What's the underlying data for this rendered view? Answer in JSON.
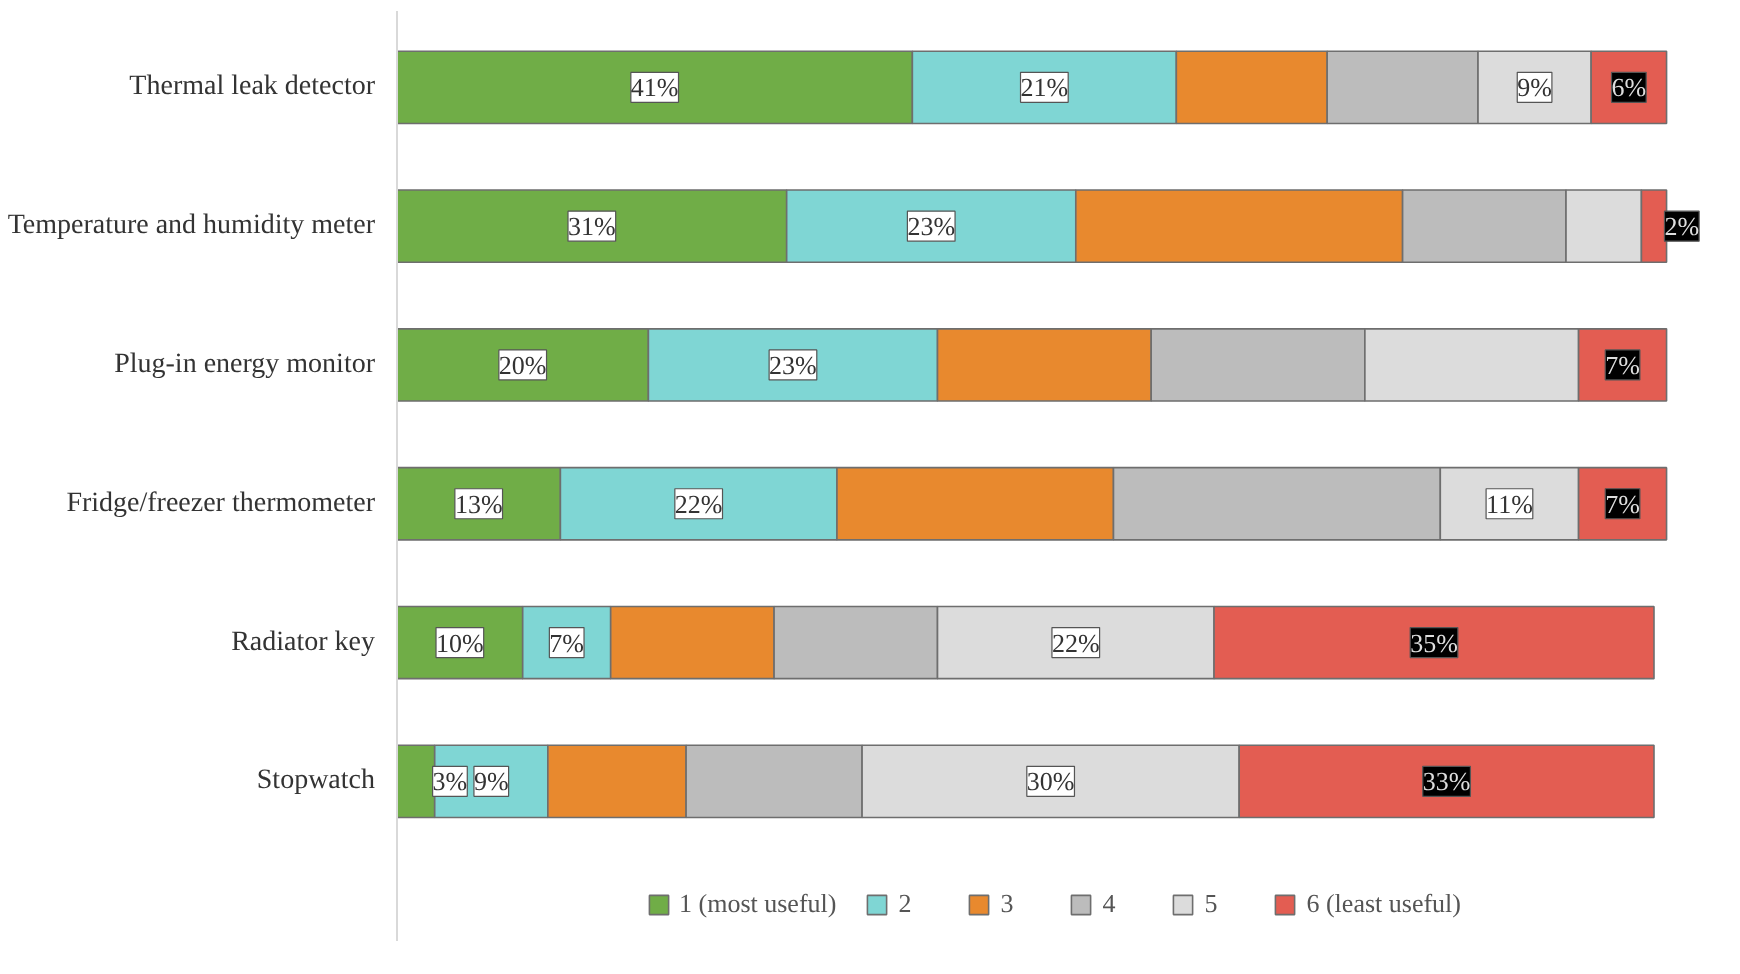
{
  "chart_data": {
    "type": "bar",
    "orientation": "horizontal",
    "stacked": true,
    "legend": "bottom",
    "grid": false,
    "tick_labels": "y",
    "categories": [
      "Thermal leak detector",
      "Temperature and humidity meter",
      "Plug-in energy monitor",
      "Fridge/freezer thermometer",
      "Radiator key",
      "Stopwatch"
    ],
    "series": [
      {
        "name": "1 (most useful)",
        "color": "#70ad47",
        "values": [
          41,
          31,
          20,
          13,
          10,
          3
        ],
        "value_labels": [
          "41%",
          "31%",
          "20%",
          "13%",
          "10%",
          "3%"
        ]
      },
      {
        "name": "2",
        "color": "#7fd6d4",
        "values": [
          21,
          23,
          23,
          22,
          7,
          9
        ],
        "value_labels": [
          "21%",
          "23%",
          "23%",
          "22%",
          "7%",
          "9%"
        ]
      },
      {
        "name": "3",
        "color": "#e8892e",
        "values": [
          12,
          26,
          17,
          22,
          13,
          11
        ],
        "value_labels": [
          null,
          null,
          null,
          null,
          null,
          null
        ]
      },
      {
        "name": "4",
        "color": "#bcbcbc",
        "values": [
          12,
          13,
          17,
          26,
          13,
          14
        ],
        "value_labels": [
          null,
          null,
          null,
          null,
          null,
          null
        ]
      },
      {
        "name": "5",
        "color": "#dcdcdc",
        "values": [
          9,
          6,
          17,
          11,
          22,
          30
        ],
        "value_labels": [
          "9%",
          null,
          null,
          "11%",
          "22%",
          "30%"
        ]
      },
      {
        "name": "6 (least useful)",
        "color": "#e35d52",
        "values": [
          6,
          2,
          7,
          7,
          35,
          33
        ],
        "value_labels": [
          "6%",
          "2%",
          "7%",
          "7%",
          "35%",
          "33%"
        ]
      }
    ]
  }
}
